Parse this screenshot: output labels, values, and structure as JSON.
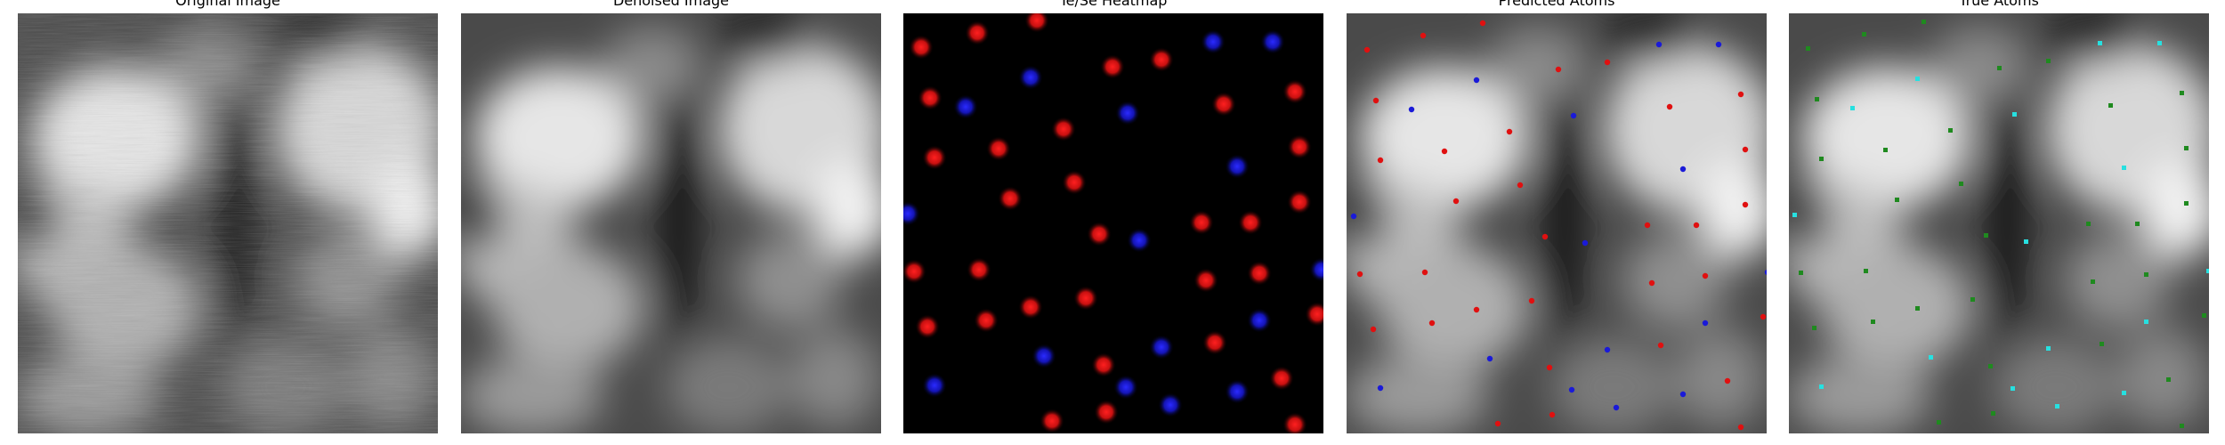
{
  "figure": {
    "panels": [
      {
        "title": "Original Image"
      },
      {
        "title": "Denoised Image"
      },
      {
        "title": "Te/Se Heatmap"
      },
      {
        "title": "Predicted Atoms"
      },
      {
        "title": "True Atoms"
      }
    ]
  },
  "colors": {
    "te_red": "#e01010",
    "se_blue": "#1a1ad8",
    "true_green": "#1f8a1f",
    "true_cyan": "#27e0e0"
  }
}
